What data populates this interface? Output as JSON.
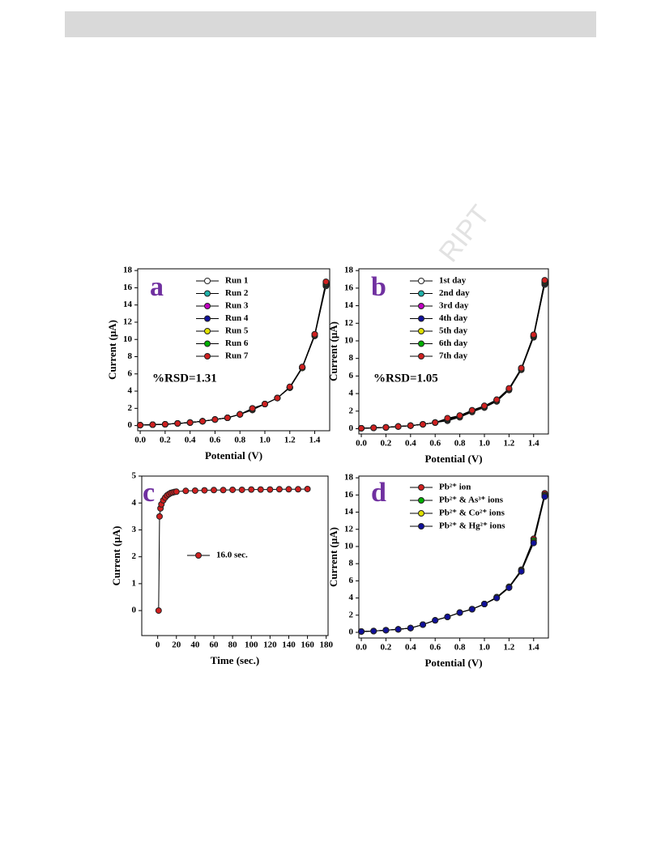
{
  "watermark": "RIPT",
  "chart_data": [
    {
      "type": "line",
      "panel_label": "a",
      "annotation": "%RSD=1.31",
      "xlabel": "Potential (V)",
      "ylabel": "Current (μA)",
      "line_color": "#000000",
      "x": [
        0,
        0.1,
        0.2,
        0.3,
        0.4,
        0.5,
        0.6,
        0.7,
        0.8,
        0.9,
        1.0,
        1.1,
        1.2,
        1.3,
        1.4,
        1.49
      ],
      "series": [
        {
          "name": "Run 1",
          "color": "#ffffff",
          "values": [
            0.05,
            0.1,
            0.15,
            0.25,
            0.35,
            0.5,
            0.7,
            0.9,
            1.3,
            1.8,
            2.5,
            3.2,
            4.4,
            6.7,
            10.4,
            16.2
          ]
        },
        {
          "name": "Run 2",
          "color": "#20b2aa",
          "values": [
            0.05,
            0.1,
            0.15,
            0.25,
            0.35,
            0.5,
            0.7,
            0.9,
            1.3,
            1.9,
            2.5,
            3.2,
            4.4,
            6.7,
            10.5,
            16.3
          ]
        },
        {
          "name": "Run 3",
          "color": "#c000c0",
          "values": [
            0.05,
            0.1,
            0.15,
            0.25,
            0.35,
            0.5,
            0.7,
            0.9,
            1.3,
            1.9,
            2.5,
            3.2,
            4.4,
            6.7,
            10.5,
            16.4
          ]
        },
        {
          "name": "Run 4",
          "color": "#10109a",
          "values": [
            0.05,
            0.1,
            0.15,
            0.25,
            0.35,
            0.5,
            0.7,
            0.9,
            1.3,
            1.9,
            2.5,
            3.2,
            4.4,
            6.7,
            10.5,
            16.4
          ]
        },
        {
          "name": "Run 5",
          "color": "#e0e000",
          "values": [
            0.05,
            0.1,
            0.15,
            0.25,
            0.35,
            0.5,
            0.7,
            0.9,
            1.3,
            1.9,
            2.5,
            3.2,
            4.4,
            6.7,
            10.5,
            16.5
          ]
        },
        {
          "name": "Run 6",
          "color": "#00b000",
          "values": [
            0.05,
            0.1,
            0.15,
            0.25,
            0.35,
            0.5,
            0.7,
            0.9,
            1.3,
            2.0,
            2.5,
            3.2,
            4.4,
            6.8,
            10.6,
            16.6
          ]
        },
        {
          "name": "Run 7",
          "color": "#d02020",
          "values": [
            0.05,
            0.1,
            0.15,
            0.25,
            0.35,
            0.5,
            0.7,
            0.9,
            1.3,
            2.0,
            2.5,
            3.2,
            4.5,
            6.8,
            10.6,
            16.7
          ]
        }
      ],
      "xlim": [
        -0.02,
        1.52
      ],
      "xticks": [
        {
          "value": 0,
          "label": "0.0"
        },
        0.2,
        0.4,
        0.6,
        0.8,
        {
          "value": 1,
          "label": "1.0"
        },
        1.2,
        1.4
      ],
      "ylim": [
        -0.6,
        18.2
      ],
      "yticks": [
        0,
        2,
        4,
        6,
        8,
        10,
        12,
        14,
        16,
        18
      ]
    },
    {
      "type": "line",
      "panel_label": "b",
      "annotation": "%RSD=1.05",
      "xlabel": "Potential (V)",
      "ylabel": "Current (μA)",
      "line_color": "#000000",
      "x": [
        0,
        0.1,
        0.2,
        0.3,
        0.4,
        0.5,
        0.6,
        0.7,
        0.8,
        0.9,
        1.0,
        1.1,
        1.2,
        1.3,
        1.4,
        1.49
      ],
      "series": [
        {
          "name": "1st day",
          "color": "#ffffff",
          "values": [
            0.05,
            0.1,
            0.15,
            0.25,
            0.35,
            0.5,
            0.7,
            0.9,
            1.3,
            1.9,
            2.4,
            3.1,
            4.4,
            6.7,
            10.4,
            16.4
          ]
        },
        {
          "name": "2nd day",
          "color": "#20b2aa",
          "values": [
            0.05,
            0.1,
            0.15,
            0.25,
            0.35,
            0.5,
            0.7,
            1.0,
            1.4,
            2.0,
            2.5,
            3.2,
            4.5,
            6.8,
            10.5,
            16.5
          ]
        },
        {
          "name": "3rd day",
          "color": "#c000c0",
          "values": [
            0.05,
            0.1,
            0.15,
            0.25,
            0.35,
            0.5,
            0.7,
            1.0,
            1.4,
            2.0,
            2.5,
            3.2,
            4.5,
            6.8,
            10.5,
            16.6
          ]
        },
        {
          "name": "4th day",
          "color": "#10109a",
          "values": [
            0.05,
            0.1,
            0.15,
            0.25,
            0.35,
            0.5,
            0.7,
            1.0,
            1.4,
            2.0,
            2.5,
            3.2,
            4.5,
            6.8,
            10.5,
            16.6
          ]
        },
        {
          "name": "5th day",
          "color": "#e0e000",
          "values": [
            0.05,
            0.1,
            0.15,
            0.25,
            0.35,
            0.5,
            0.7,
            1.1,
            1.4,
            2.0,
            2.5,
            3.2,
            4.5,
            6.8,
            10.6,
            16.7
          ]
        },
        {
          "name": "6th day",
          "color": "#00b000",
          "values": [
            0.05,
            0.1,
            0.15,
            0.25,
            0.35,
            0.5,
            0.7,
            1.1,
            1.5,
            2.1,
            2.6,
            3.3,
            4.5,
            6.9,
            10.6,
            16.8
          ]
        },
        {
          "name": "7th day",
          "color": "#d02020",
          "values": [
            0.05,
            0.1,
            0.15,
            0.25,
            0.35,
            0.5,
            0.7,
            1.2,
            1.5,
            2.1,
            2.6,
            3.3,
            4.6,
            6.9,
            10.7,
            16.9
          ]
        }
      ],
      "xlim": [
        -0.02,
        1.52
      ],
      "xticks": [
        {
          "value": 0,
          "label": "0.0"
        },
        0.2,
        0.4,
        0.6,
        0.8,
        {
          "value": 1,
          "label": "1.0"
        },
        1.2,
        1.4
      ],
      "ylim": [
        -0.6,
        18.2
      ],
      "yticks": [
        0,
        2,
        4,
        6,
        8,
        10,
        12,
        14,
        16,
        18
      ]
    },
    {
      "type": "line",
      "panel_label": "c",
      "xlabel": "Time (sec.)",
      "ylabel": "Current (μA)",
      "line_color": "#000000",
      "x": [
        1,
        2,
        3,
        4,
        6,
        8,
        10,
        12,
        14,
        16,
        18,
        20,
        30,
        40,
        50,
        60,
        70,
        80,
        90,
        100,
        110,
        120,
        130,
        140,
        150,
        160
      ],
      "series": [
        {
          "name": "16.0 sec.",
          "color": "#d02020",
          "values": [
            0,
            3.5,
            3.8,
            3.95,
            4.1,
            4.2,
            4.28,
            4.33,
            4.37,
            4.39,
            4.41,
            4.42,
            4.45,
            4.46,
            4.47,
            4.48,
            4.48,
            4.49,
            4.49,
            4.5,
            4.5,
            4.5,
            4.51,
            4.51,
            4.51,
            4.52
          ]
        }
      ],
      "xlim": [
        -17,
        182
      ],
      "xticks": [
        0,
        20,
        40,
        60,
        80,
        100,
        120,
        140,
        160,
        180
      ],
      "ylim": [
        -0.93,
        5
      ],
      "yticks": [
        0,
        1,
        2,
        3,
        4,
        5
      ]
    },
    {
      "type": "line",
      "panel_label": "d",
      "xlabel": "Potential (V)",
      "ylabel": "Current (μA)",
      "line_color": "#000000",
      "x": [
        0,
        0.1,
        0.2,
        0.3,
        0.4,
        0.5,
        0.6,
        0.7,
        0.8,
        0.9,
        1.0,
        1.1,
        1.2,
        1.3,
        1.4,
        1.49
      ],
      "series": [
        {
          "name": "Pb²⁺ ion",
          "color": "#d02020",
          "values": [
            0.1,
            0.15,
            0.25,
            0.35,
            0.5,
            0.9,
            1.4,
            1.8,
            2.3,
            2.7,
            3.3,
            4.1,
            5.3,
            7.3,
            10.9,
            16.2
          ]
        },
        {
          "name": "Pb²⁺ & As³⁺ ions",
          "color": "#00b000",
          "values": [
            0.1,
            0.15,
            0.25,
            0.35,
            0.5,
            0.9,
            1.4,
            1.8,
            2.3,
            2.7,
            3.3,
            4.1,
            5.3,
            7.2,
            10.7,
            16.0
          ]
        },
        {
          "name": "Pb²⁺ & Co²⁺ ions",
          "color": "#e0e000",
          "values": [
            0.1,
            0.15,
            0.25,
            0.35,
            0.5,
            0.9,
            1.4,
            1.8,
            2.3,
            2.7,
            3.3,
            4.0,
            5.2,
            7.1,
            10.5,
            15.9
          ]
        },
        {
          "name": "Pb²⁺ & Hg²⁺ ions",
          "color": "#10109a",
          "values": [
            0.1,
            0.15,
            0.25,
            0.35,
            0.5,
            0.9,
            1.4,
            1.8,
            2.3,
            2.7,
            3.3,
            4.0,
            5.2,
            7.1,
            10.4,
            15.8
          ]
        }
      ],
      "xlim": [
        -0.02,
        1.52
      ],
      "xticks": [
        {
          "value": 0,
          "label": "0.0"
        },
        0.2,
        0.4,
        0.6,
        0.8,
        {
          "value": 1,
          "label": "1.0"
        },
        1.2,
        1.4
      ],
      "ylim": [
        -0.66,
        18.2
      ],
      "yticks": [
        0,
        2,
        4,
        6,
        8,
        10,
        12,
        14,
        16,
        18
      ]
    }
  ]
}
